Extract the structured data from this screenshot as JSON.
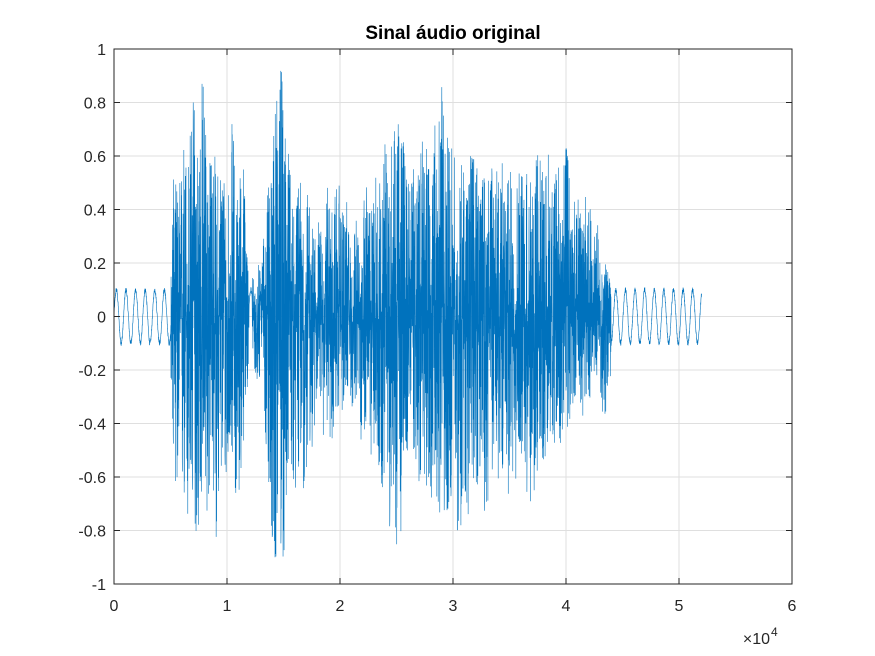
{
  "chart_data": {
    "type": "line",
    "title": "Sinal áudio original",
    "xlabel": "",
    "ylabel": "",
    "xlim": [
      0,
      6
    ],
    "ylim": [
      -1,
      1
    ],
    "x_multiplier_label": "×10",
    "x_multiplier_exponent": "4",
    "x_ticks": [
      0,
      1,
      2,
      3,
      4,
      5,
      6
    ],
    "x_tick_labels": [
      "0",
      "1",
      "2",
      "3",
      "4",
      "5",
      "6"
    ],
    "y_ticks": [
      -1,
      -0.8,
      -0.6,
      -0.4,
      -0.2,
      0,
      0.2,
      0.4,
      0.6,
      0.8,
      1
    ],
    "y_tick_labels": [
      "-1",
      "-0.8",
      "-0.6",
      "-0.4",
      "-0.2",
      "0",
      "0.2",
      "0.4",
      "0.6",
      "0.8",
      "1"
    ],
    "grid": true,
    "line_color": "#0072BD",
    "series": [
      {
        "x_end": 5.2,
        "envelope_x": [
          0,
          0.5,
          0.52,
          0.6,
          0.7,
          0.8,
          0.85,
          0.9,
          1.0,
          1.05,
          1.1,
          1.15,
          1.2,
          1.3,
          1.4,
          1.45,
          1.5,
          1.55,
          1.6,
          1.7,
          1.8,
          1.9,
          2.0,
          2.1,
          2.2,
          2.3,
          2.4,
          2.5,
          2.6,
          2.7,
          2.8,
          2.9,
          3.0,
          3.1,
          3.2,
          3.3,
          3.4,
          3.5,
          3.6,
          3.7,
          3.8,
          3.9,
          4.0,
          4.1,
          4.2,
          4.3,
          4.35,
          4.4,
          4.5,
          4.6,
          5.2
        ],
        "envelope_max": [
          0.12,
          0.12,
          0.45,
          0.6,
          0.8,
          0.9,
          0.6,
          0.62,
          0.55,
          0.7,
          0.5,
          0.6,
          0.12,
          0.2,
          0.7,
          0.95,
          0.88,
          0.55,
          0.4,
          0.55,
          0.3,
          0.45,
          0.5,
          0.3,
          0.42,
          0.48,
          0.6,
          0.8,
          0.6,
          0.65,
          0.72,
          0.85,
          0.6,
          0.55,
          0.62,
          0.55,
          0.6,
          0.5,
          0.55,
          0.62,
          0.6,
          0.55,
          0.62,
          0.4,
          0.45,
          0.28,
          0.2,
          0.15,
          0.15,
          0.12,
          0.12
        ],
        "envelope_min": [
          -0.12,
          -0.12,
          -0.6,
          -0.8,
          -0.85,
          -0.75,
          -0.7,
          -0.8,
          -0.6,
          -0.55,
          -0.75,
          -0.5,
          -0.12,
          -0.3,
          -0.88,
          -0.92,
          -0.9,
          -0.55,
          -0.65,
          -0.6,
          -0.35,
          -0.5,
          -0.35,
          -0.3,
          -0.45,
          -0.5,
          -0.7,
          -0.94,
          -0.5,
          -0.6,
          -0.7,
          -0.8,
          -0.7,
          -0.88,
          -0.6,
          -0.75,
          -0.65,
          -0.7,
          -0.6,
          -0.75,
          -0.5,
          -0.55,
          -0.5,
          -0.3,
          -0.35,
          -0.25,
          -0.42,
          -0.15,
          -0.15,
          -0.12,
          -0.12
        ]
      }
    ]
  }
}
